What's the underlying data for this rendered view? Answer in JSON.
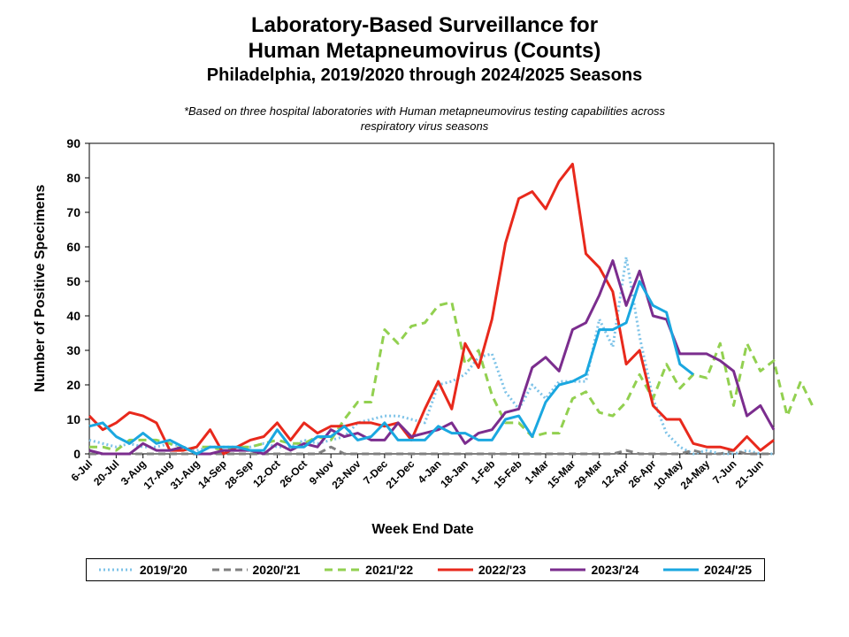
{
  "chart_data": {
    "type": "line",
    "title": "Laboratory-Based Surveillance for",
    "title_line2": "Human Metapneumovirus (Counts)",
    "subtitle": "Philadelphia, 2019/2020 through 2024/2025 Seasons",
    "note_line1": "*Based on three hospital laboratories with Human metapneumovirus testing capabilities across",
    "note_line2": "respiratory virus seasons",
    "xlabel": "Week End Date",
    "ylabel": "Number of Positive Specimens",
    "ylim": [
      0,
      90
    ],
    "yticks": [
      "0",
      "10",
      "20",
      "30",
      "40",
      "50",
      "60",
      "70",
      "80",
      "90"
    ],
    "xtick_labels": [
      "6-Jul",
      "20-Jul",
      "3-Aug",
      "17-Aug",
      "31-Aug",
      "14-Sep",
      "28-Sep",
      "12-Oct",
      "26-Oct",
      "9-Nov",
      "23-Nov",
      "7-Dec",
      "21-Dec",
      "4-Jan",
      "18-Jan",
      "1-Feb",
      "15-Feb",
      "1-Mar",
      "15-Mar",
      "29-Mar",
      "12-Apr",
      "26-Apr",
      "10-May",
      "24-May",
      "7-Jun",
      "21-Jun"
    ],
    "grid": false,
    "legend_position": "bottom",
    "series": [
      {
        "name": "2019/'20",
        "color": "#7ec3e8",
        "dash": "dotted",
        "values": [
          4,
          3,
          2,
          3,
          2,
          2,
          3,
          2,
          1,
          2,
          2,
          2,
          2,
          3,
          2,
          2,
          4,
          3,
          4,
          5,
          9,
          10,
          11,
          11,
          10,
          9,
          20,
          21,
          23,
          28,
          29,
          18,
          13,
          20,
          16,
          21,
          21,
          21,
          39,
          31,
          57,
          34,
          16,
          6,
          2,
          0,
          1,
          0,
          0,
          1,
          0,
          0
        ]
      },
      {
        "name": "2020/'21",
        "color": "#808080",
        "dash": "dashed",
        "values": [
          0,
          0,
          0,
          0,
          0,
          0,
          0,
          0,
          0,
          0,
          0,
          0,
          0,
          0,
          0,
          0,
          0,
          0,
          2,
          0,
          0,
          0,
          0,
          0,
          0,
          0,
          0,
          0,
          0,
          0,
          0,
          0,
          0,
          0,
          0,
          0,
          0,
          0,
          0,
          0,
          1,
          0,
          0,
          0,
          0,
          1,
          0,
          0,
          1,
          0,
          0,
          0
        ]
      },
      {
        "name": "2021/'22",
        "color": "#92d050",
        "dash": "long-dashed",
        "values": [
          2,
          2,
          1,
          4,
          4,
          4,
          3,
          1,
          2,
          2,
          1,
          2,
          2,
          3,
          4,
          3,
          3,
          5,
          4,
          10,
          15,
          15,
          36,
          32,
          37,
          38,
          43,
          44,
          26,
          30,
          17,
          9,
          9,
          5,
          6,
          6,
          16,
          18,
          12,
          11,
          15,
          23,
          16,
          26,
          19,
          23,
          22,
          32,
          14,
          32,
          24,
          27,
          11,
          21,
          13
        ]
      },
      {
        "name": "2022/'23",
        "color": "#e8291c",
        "dash": "solid",
        "values": [
          11,
          7,
          9,
          12,
          11,
          9,
          1,
          1,
          2,
          7,
          0,
          2,
          4,
          5,
          9,
          4,
          9,
          6,
          8,
          8,
          9,
          9,
          8,
          9,
          4,
          13,
          21,
          13,
          32,
          25,
          39,
          61,
          74,
          76,
          71,
          79,
          84,
          58,
          54,
          47,
          26,
          30,
          14,
          10,
          10,
          3,
          2,
          2,
          1,
          5,
          1,
          4
        ]
      },
      {
        "name": "2023/'24",
        "color": "#7b2d8e",
        "dash": "solid",
        "values": [
          1,
          0,
          0,
          0,
          3,
          1,
          1,
          2,
          0,
          0,
          1,
          1,
          1,
          0,
          3,
          1,
          3,
          2,
          7,
          5,
          6,
          4,
          4,
          9,
          5,
          6,
          7,
          9,
          3,
          6,
          7,
          12,
          13,
          25,
          28,
          24,
          36,
          38,
          46,
          56,
          43,
          53,
          40,
          39,
          29,
          29,
          29,
          27,
          24,
          11,
          14,
          7
        ]
      },
      {
        "name": "2024/'25",
        "color": "#1aa7e0",
        "dash": "solid",
        "values": [
          8,
          9,
          5,
          3,
          6,
          3,
          4,
          2,
          0,
          2,
          2,
          2,
          1,
          1,
          7,
          2,
          2,
          5,
          5,
          8,
          4,
          5,
          9,
          4,
          4,
          4,
          8,
          6,
          6,
          4,
          4,
          10,
          11,
          5,
          15,
          20,
          21,
          23,
          36,
          36,
          38,
          50,
          43,
          41,
          26,
          23
        ]
      }
    ]
  }
}
